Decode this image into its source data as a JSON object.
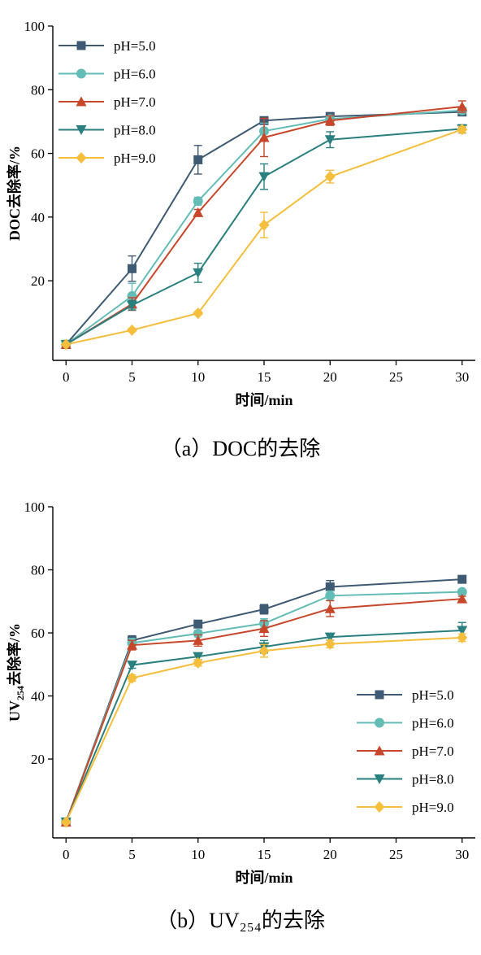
{
  "charts": [
    {
      "caption": "（a）DOC的去除",
      "xlabel": "时间/min",
      "ylabel": "DOC去除率/%",
      "legend_loc": "top-left"
    },
    {
      "caption": "（b）UV₂₅₄的去除",
      "xlabel": "时间/min",
      "ylabel_main": "UV",
      "ylabel_sub": "254",
      "ylabel_rest": "去除率/%",
      "legend_loc": "bottom-right"
    }
  ],
  "colors": {
    "pH=5.0": "#3f5a73",
    "pH=6.0": "#64bcb6",
    "pH=7.0": "#c8472a",
    "pH=8.0": "#2a7f7f",
    "pH=9.0": "#f5be3c"
  },
  "chart_data": [
    {
      "type": "line",
      "xlabel": "时间/min",
      "ylabel": "DOC去除率/%",
      "x": [
        0,
        5,
        10,
        15,
        20,
        30
      ],
      "xlim": [
        -1,
        31
      ],
      "ylim": [
        -5,
        100
      ],
      "xticks": [
        0,
        5,
        10,
        15,
        20,
        25,
        30
      ],
      "yticks": [
        20,
        40,
        60,
        80,
        100
      ],
      "grid": false,
      "series": [
        {
          "name": "pH=5.0",
          "marker": "square",
          "values": [
            0,
            23.8,
            58,
            70.3,
            71.6,
            73
          ],
          "errors": [
            0,
            4,
            4.5,
            1,
            1,
            1
          ]
        },
        {
          "name": "pH=6.0",
          "marker": "circle",
          "values": [
            0,
            15.2,
            45,
            67,
            70.8,
            73.5
          ],
          "errors": [
            0,
            4,
            1.2,
            2.5,
            1,
            1
          ]
        },
        {
          "name": "pH=7.0",
          "marker": "triangle-up",
          "values": [
            0,
            12.7,
            41.4,
            65,
            70.3,
            74.7
          ],
          "errors": [
            0,
            2,
            1,
            6,
            1.5,
            1.8
          ]
        },
        {
          "name": "pH=8.0",
          "marker": "triangle-down",
          "values": [
            0,
            12.3,
            22.5,
            52.7,
            64.3,
            67.7
          ],
          "errors": [
            0,
            1.5,
            3,
            4,
            2.5,
            1.3
          ]
        },
        {
          "name": "pH=9.0",
          "marker": "diamond",
          "values": [
            0,
            4.5,
            9.8,
            37.5,
            52.7,
            67.5
          ],
          "errors": [
            0,
            0.5,
            0.5,
            4,
            2,
            1
          ]
        }
      ]
    },
    {
      "type": "line",
      "xlabel": "时间/min",
      "ylabel": "UV254去除率/%",
      "x": [
        0,
        5,
        10,
        15,
        20,
        30
      ],
      "xlim": [
        -1,
        31
      ],
      "ylim": [
        -5,
        100
      ],
      "xticks": [
        0,
        5,
        10,
        15,
        20,
        25,
        30
      ],
      "yticks": [
        20,
        40,
        60,
        80,
        100
      ],
      "grid": false,
      "series": [
        {
          "name": "pH=5.0",
          "marker": "square",
          "values": [
            0,
            57.6,
            62.8,
            67.5,
            74.6,
            77
          ],
          "errors": [
            0,
            1.5,
            1,
            1.5,
            2,
            0.5
          ]
        },
        {
          "name": "pH=6.0",
          "marker": "circle",
          "values": [
            0,
            56.8,
            59.8,
            63,
            71.8,
            73
          ],
          "errors": [
            0,
            1.5,
            1,
            1.5,
            1.5,
            0.5
          ]
        },
        {
          "name": "pH=7.0",
          "marker": "triangle-up",
          "values": [
            0,
            56.1,
            57.6,
            61.4,
            67.7,
            70.8
          ],
          "errors": [
            0,
            1.5,
            1.8,
            2.5,
            2.5,
            0.8
          ]
        },
        {
          "name": "pH=8.0",
          "marker": "triangle-down",
          "values": [
            0,
            49.8,
            52.5,
            55.6,
            58.7,
            60.8
          ],
          "errors": [
            0,
            1,
            1,
            2,
            1,
            2.5
          ]
        },
        {
          "name": "pH=9.0",
          "marker": "diamond",
          "values": [
            0,
            45.7,
            50.5,
            54.3,
            56.5,
            58.5
          ],
          "errors": [
            0,
            1,
            1,
            2,
            1.2,
            1.2
          ]
        }
      ]
    }
  ]
}
